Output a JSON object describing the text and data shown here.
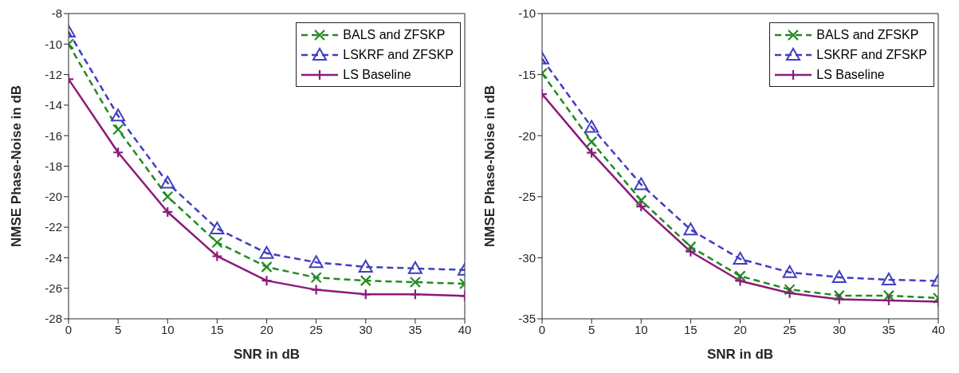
{
  "chart_data": [
    {
      "type": "line",
      "xlabel": "SNR in dB",
      "ylabel": "NMSE Phase-Noise in dB",
      "x": [
        0,
        5,
        10,
        15,
        20,
        25,
        30,
        35,
        40
      ],
      "xlim": [
        0,
        40
      ],
      "xticks": [
        0,
        5,
        10,
        15,
        20,
        25,
        30,
        35,
        40
      ],
      "ylim": [
        -28,
        -8
      ],
      "yticks": [
        -28,
        -26,
        -24,
        -22,
        -20,
        -18,
        -16,
        -14,
        -12,
        -10,
        -8
      ],
      "grid": false,
      "legend": "top right",
      "series": [
        {
          "name": "BALS and ZFSKP",
          "color": "#228b22",
          "marker": "cross",
          "line_style": "dashed",
          "values": [
            -10.0,
            -15.6,
            -20.0,
            -23.0,
            -24.6,
            -25.3,
            -25.5,
            -25.6,
            -25.7
          ]
        },
        {
          "name": "LSKRF and ZFSKP",
          "color": "#3f3fbf",
          "marker": "triangle",
          "line_style": "dashed",
          "values": [
            -9.2,
            -14.7,
            -19.1,
            -22.1,
            -23.7,
            -24.3,
            -24.6,
            -24.7,
            -24.8
          ]
        },
        {
          "name": "LS Baseline",
          "color": "#8b1a7a",
          "marker": "plus",
          "line_style": "solid",
          "values": [
            -12.3,
            -17.1,
            -21.0,
            -23.9,
            -25.5,
            -26.1,
            -26.4,
            -26.4,
            -26.5
          ]
        }
      ]
    },
    {
      "type": "line",
      "xlabel": "SNR in dB",
      "ylabel": "NMSE Phase-Noise in dB",
      "x": [
        0,
        5,
        10,
        15,
        20,
        25,
        30,
        35,
        40
      ],
      "xlim": [
        0,
        40
      ],
      "xticks": [
        0,
        5,
        10,
        15,
        20,
        25,
        30,
        35,
        40
      ],
      "ylim": [
        -35,
        -10
      ],
      "yticks": [
        -35,
        -30,
        -25,
        -20,
        -15,
        -10
      ],
      "grid": false,
      "legend": "top right",
      "series": [
        {
          "name": "BALS and ZFSKP",
          "color": "#228b22",
          "marker": "cross",
          "line_style": "dashed",
          "values": [
            -14.9,
            -20.5,
            -25.3,
            -29.1,
            -31.5,
            -32.6,
            -33.1,
            -33.1,
            -33.3
          ]
        },
        {
          "name": "LSKRF and ZFSKP",
          "color": "#3f3fbf",
          "marker": "triangle",
          "line_style": "dashed",
          "values": [
            -13.7,
            -19.3,
            -24.0,
            -27.7,
            -30.1,
            -31.2,
            -31.6,
            -31.8,
            -31.9
          ]
        },
        {
          "name": "LS Baseline",
          "color": "#8b1a7a",
          "marker": "plus",
          "line_style": "solid",
          "values": [
            -16.6,
            -21.4,
            -25.8,
            -29.5,
            -31.9,
            -32.9,
            -33.4,
            -33.5,
            -33.6
          ]
        }
      ]
    }
  ]
}
